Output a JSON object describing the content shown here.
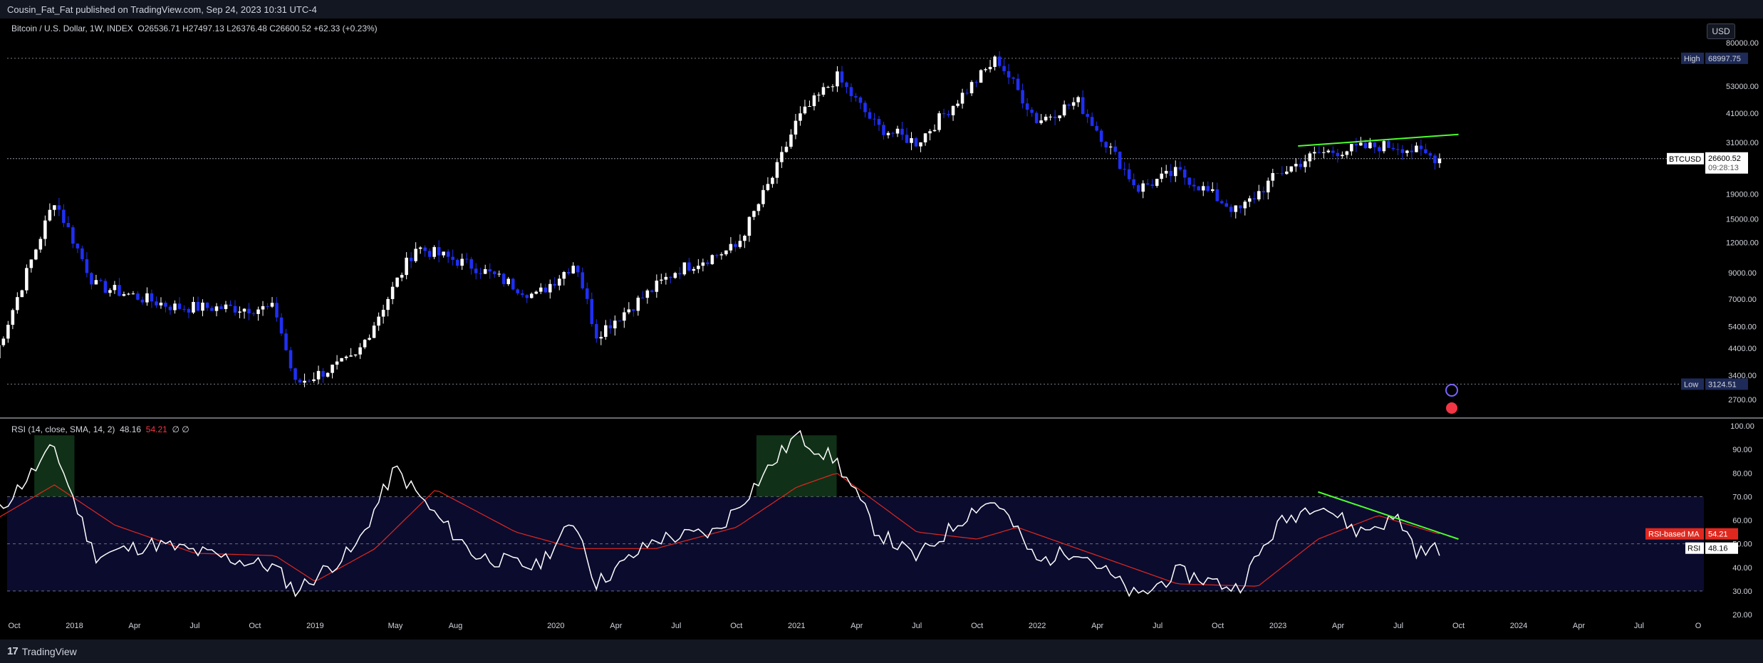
{
  "header": {
    "published_text": "Cousin_Fat_Fat published on TradingView.com, Sep 24, 2023 10:31 UTC-4"
  },
  "price_legend": {
    "symbol": "Bitcoin / U.S. Dollar, 1W, INDEX",
    "ohlc": "O26536.71  H27497.13  L26376.48  C26600.52  +62.33 (+0.23%)"
  },
  "rsi_legend": {
    "label": "RSI (14, close, SMA, 14, 2)",
    "rsi_value": "48.16",
    "ma_value": "54.21",
    "extra": "∅  ∅"
  },
  "currency_button": "USD",
  "footer": {
    "brand": "TradingView",
    "logo_mark": "17"
  },
  "colors": {
    "up": "#ffffff",
    "down": "#1f2ff2",
    "rsi": "#ffffff",
    "rsi_ma": "#e0281f",
    "trend": "#4cff2e",
    "rsi_band": "#0b0b2e",
    "background": "#000000"
  },
  "chart_data": [
    {
      "type": "candlestick",
      "title": "Bitcoin / U.S. Dollar, 1W, INDEX",
      "y_scale": "log",
      "y_ticks": [
        80000,
        68997.75,
        53000,
        41000,
        31000,
        26600.52,
        19000,
        15000,
        12000,
        9000,
        7000,
        5400,
        4400,
        3400,
        3124.51,
        2700
      ],
      "y_tick_labels": [
        "80000.00",
        "53000.00",
        "41000.00",
        "31000.00",
        "19000.00",
        "15000.00",
        "12000.00",
        "9000.00",
        "7000.00",
        "5400.00",
        "4400.00",
        "3400.00",
        "2700.00"
      ],
      "x_tick_labels": [
        "Oct",
        "2018",
        "Apr",
        "Jul",
        "Oct",
        "2019",
        "May",
        "Aug",
        "2020",
        "Apr",
        "Jul",
        "Oct",
        "2021",
        "Apr",
        "Jul",
        "Oct",
        "2022",
        "Apr",
        "Jul",
        "Oct",
        "2023",
        "Apr",
        "Jul",
        "Oct",
        "2024",
        "Apr",
        "Jul",
        "O"
      ],
      "x_start": "2017-09",
      "key_points": [
        {
          "date": "2017-09",
          "price": 4000
        },
        {
          "date": "2017-12",
          "price": 18000
        },
        {
          "date": "2018-02",
          "price": 8000
        },
        {
          "date": "2018-06",
          "price": 6500
        },
        {
          "date": "2018-11",
          "price": 6400
        },
        {
          "date": "2018-12",
          "price": 3124.51
        },
        {
          "date": "2019-03",
          "price": 4000
        },
        {
          "date": "2019-06",
          "price": 11500
        },
        {
          "date": "2019-09",
          "price": 9500
        },
        {
          "date": "2019-12",
          "price": 7200
        },
        {
          "date": "2020-02",
          "price": 10000
        },
        {
          "date": "2020-03",
          "price": 5000
        },
        {
          "date": "2020-07",
          "price": 9200
        },
        {
          "date": "2020-10",
          "price": 11500
        },
        {
          "date": "2020-12",
          "price": 24000
        },
        {
          "date": "2021-01",
          "price": 38000
        },
        {
          "date": "2021-03",
          "price": 58000
        },
        {
          "date": "2021-05",
          "price": 36000
        },
        {
          "date": "2021-07",
          "price": 31000
        },
        {
          "date": "2021-11",
          "price": 68997.75
        },
        {
          "date": "2022-01",
          "price": 38000
        },
        {
          "date": "2022-03",
          "price": 46000
        },
        {
          "date": "2022-06",
          "price": 20000
        },
        {
          "date": "2022-08",
          "price": 23500
        },
        {
          "date": "2022-11",
          "price": 16000
        },
        {
          "date": "2023-01",
          "price": 23000
        },
        {
          "date": "2023-03",
          "price": 28000
        },
        {
          "date": "2023-06",
          "price": 30000
        },
        {
          "date": "2023-07",
          "price": 30000
        },
        {
          "date": "2023-09",
          "price": 26600.52
        }
      ],
      "high": {
        "label": "High",
        "value": "68997.75"
      },
      "low": {
        "label": "Low",
        "value": "3124.51"
      },
      "last_price": {
        "symbol": "BTCUSD",
        "value": "26600.52",
        "countdown": "09:28:13"
      },
      "trendline": {
        "from": {
          "date": "2023-02",
          "price": 30000
        },
        "to": {
          "date": "2023-10",
          "price": 33500
        }
      }
    },
    {
      "type": "line",
      "title": "RSI (14, close, SMA, 14, 2)",
      "ylim": [
        20,
        100
      ],
      "y_tick_labels": [
        "100.00",
        "90.00",
        "80.00",
        "70.00",
        "60.00",
        "50.00",
        "40.00",
        "30.00",
        "20.00"
      ],
      "band": [
        30,
        70
      ],
      "midline": 50,
      "series": [
        {
          "name": "RSI",
          "last": "48.16",
          "points": [
            {
              "date": "2017-09",
              "value": 62
            },
            {
              "date": "2017-12",
              "value": 91
            },
            {
              "date": "2018-02",
              "value": 45
            },
            {
              "date": "2018-05",
              "value": 50
            },
            {
              "date": "2018-08",
              "value": 45
            },
            {
              "date": "2018-11",
              "value": 40
            },
            {
              "date": "2018-12",
              "value": 30
            },
            {
              "date": "2019-03",
              "value": 48
            },
            {
              "date": "2019-05",
              "value": 82
            },
            {
              "date": "2019-07",
              "value": 62
            },
            {
              "date": "2019-09",
              "value": 45
            },
            {
              "date": "2019-12",
              "value": 40
            },
            {
              "date": "2020-02",
              "value": 60
            },
            {
              "date": "2020-03",
              "value": 33
            },
            {
              "date": "2020-06",
              "value": 52
            },
            {
              "date": "2020-09",
              "value": 55
            },
            {
              "date": "2020-12",
              "value": 86
            },
            {
              "date": "2021-01",
              "value": 96
            },
            {
              "date": "2021-03",
              "value": 85
            },
            {
              "date": "2021-05",
              "value": 55
            },
            {
              "date": "2021-07",
              "value": 44
            },
            {
              "date": "2021-10",
              "value": 66
            },
            {
              "date": "2021-11",
              "value": 68
            },
            {
              "date": "2022-01",
              "value": 42
            },
            {
              "date": "2022-03",
              "value": 48
            },
            {
              "date": "2022-06",
              "value": 27
            },
            {
              "date": "2022-08",
              "value": 38
            },
            {
              "date": "2022-11",
              "value": 31
            },
            {
              "date": "2023-01",
              "value": 58
            },
            {
              "date": "2023-03",
              "value": 68
            },
            {
              "date": "2023-05",
              "value": 55
            },
            {
              "date": "2023-07",
              "value": 61
            },
            {
              "date": "2023-08",
              "value": 46
            },
            {
              "date": "2023-09",
              "value": 48.16
            }
          ]
        },
        {
          "name": "RSI-based MA",
          "last": "54.21",
          "points": [
            {
              "date": "2017-09",
              "value": 60
            },
            {
              "date": "2017-12",
              "value": 75
            },
            {
              "date": "2018-03",
              "value": 58
            },
            {
              "date": "2018-07",
              "value": 46
            },
            {
              "date": "2018-11",
              "value": 45
            },
            {
              "date": "2019-01",
              "value": 34
            },
            {
              "date": "2019-04",
              "value": 48
            },
            {
              "date": "2019-07",
              "value": 73
            },
            {
              "date": "2019-11",
              "value": 55
            },
            {
              "date": "2020-02",
              "value": 48
            },
            {
              "date": "2020-06",
              "value": 48
            },
            {
              "date": "2020-10",
              "value": 57
            },
            {
              "date": "2021-01",
              "value": 74
            },
            {
              "date": "2021-03",
              "value": 80
            },
            {
              "date": "2021-07",
              "value": 55
            },
            {
              "date": "2021-10",
              "value": 52
            },
            {
              "date": "2021-12",
              "value": 57
            },
            {
              "date": "2022-04",
              "value": 45
            },
            {
              "date": "2022-08",
              "value": 33
            },
            {
              "date": "2022-12",
              "value": 32
            },
            {
              "date": "2023-03",
              "value": 52
            },
            {
              "date": "2023-06",
              "value": 62
            },
            {
              "date": "2023-09",
              "value": 54.21
            }
          ]
        }
      ],
      "trendline": {
        "from": {
          "date": "2023-03",
          "value": 72
        },
        "to": {
          "date": "2023-10",
          "value": 52
        }
      }
    }
  ]
}
